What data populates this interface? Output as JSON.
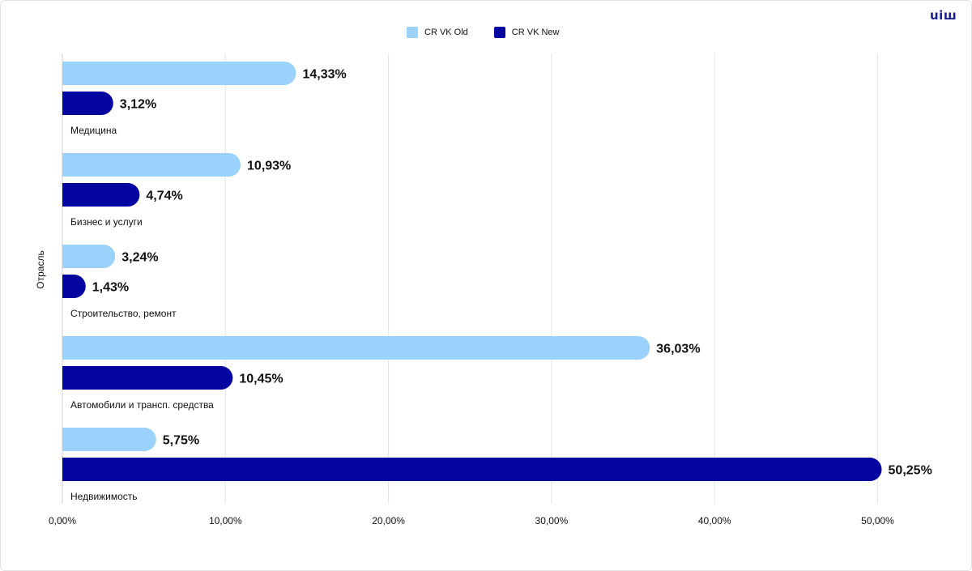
{
  "logo_text": "uiш",
  "chart_data": {
    "type": "bar",
    "orientation": "horizontal",
    "ylabel": "Отрасль",
    "xlim": [
      0,
      50
    ],
    "x_ticks": [
      "0,00%",
      "10,00%",
      "20,00%",
      "30,00%",
      "40,00%",
      "50,00%"
    ],
    "grid": true,
    "legend_position": "top-center",
    "categories": [
      "Медицина",
      "Бизнес и услуги",
      "Строительство, ремонт",
      "Автомобили и трансп. средства",
      "Недвижимость"
    ],
    "series": [
      {
        "name": "CR VK Old",
        "color": "#9ad2fc",
        "values": [
          14.33,
          10.93,
          3.24,
          36.03,
          5.75
        ],
        "labels": [
          "14,33%",
          "10,93%",
          "3,24%",
          "36,03%",
          "5,75%"
        ]
      },
      {
        "name": "CR VK New",
        "color": "#0404a0",
        "values": [
          3.12,
          4.74,
          1.43,
          10.45,
          50.25
        ],
        "labels": [
          "3,12%",
          "4,74%",
          "1,43%",
          "10,45%",
          "50,25%"
        ]
      }
    ]
  }
}
